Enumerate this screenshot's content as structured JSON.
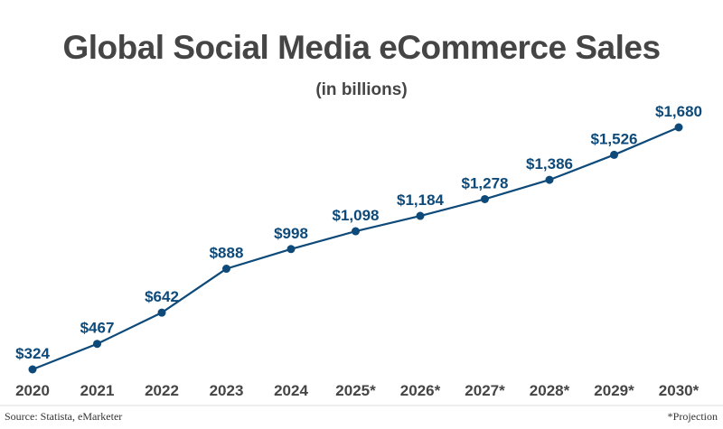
{
  "chart_data": {
    "type": "line",
    "title": "Global Social Media eCommerce Sales",
    "subtitle": "(in billions)",
    "categories": [
      "2020",
      "2021",
      "2022",
      "2023",
      "2024",
      "2025*",
      "2026*",
      "2027*",
      "2028*",
      "2029*",
      "2030*"
    ],
    "values": [
      324,
      467,
      642,
      888,
      998,
      1098,
      1184,
      1278,
      1386,
      1526,
      1680
    ],
    "data_labels": [
      "$324",
      "$467",
      "$642",
      "$888",
      "$998",
      "$1,098",
      "$1,184",
      "$1,278",
      "$1,386",
      "$1,526",
      "$1,680"
    ],
    "xlabel": "",
    "ylabel": "",
    "grid": false,
    "legend": "none",
    "color": "#0d4a7a",
    "source": "Source: Statista, eMarketer",
    "note": "*Projection"
  }
}
